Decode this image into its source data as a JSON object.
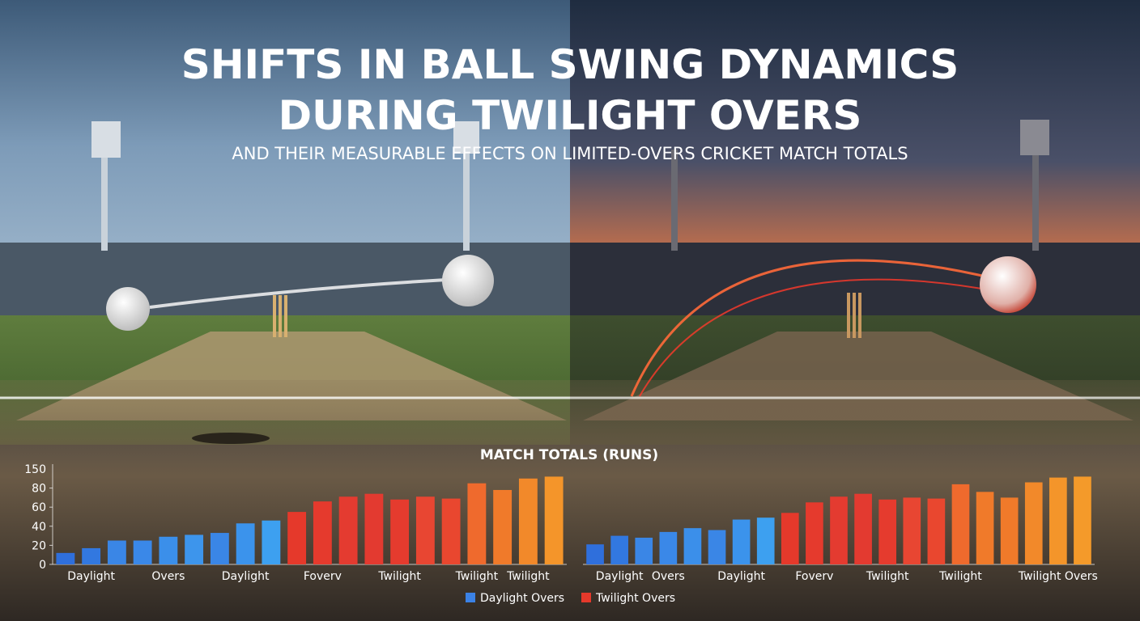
{
  "title_lines": [
    "SHIFTS IN BALL SWING DYNAMICS",
    "DURING TWILIGHT OVERS"
  ],
  "subtitle": "AND THEIR MEASURABLE EFFECTS ON LIMITED-OVERS CRICKET MATCH TOTALS",
  "chart_title": "MATCH TOTALS (RUNS)",
  "legend": [
    {
      "name": "Daylight Overs",
      "color": "#3b82e6"
    },
    {
      "name": "Twilight Overs",
      "color": "#e5392b"
    }
  ],
  "chart_data": [
    {
      "type": "bar",
      "categories": [
        null,
        "Daylight",
        null,
        null,
        "Overs",
        null,
        null,
        "Daylight",
        null,
        null,
        "Foverv",
        null,
        null,
        "Twilight",
        null,
        null,
        "Twilight",
        null,
        "Twilight",
        null
      ],
      "values": [
        12,
        17,
        25,
        25,
        29,
        31,
        33,
        43,
        46,
        55,
        66,
        71,
        74,
        68,
        71,
        69,
        85,
        78,
        90,
        92
      ],
      "colors": [
        "#2f6fdc",
        "#3278e0",
        "#3a86e6",
        "#3a88e8",
        "#3b8fea",
        "#3d95ec",
        "#3a86e6",
        "#3b93ec",
        "#3da0f0",
        "#e5392b",
        "#e53a2d",
        "#e43b30",
        "#e33a30",
        "#e53b2e",
        "#e84632",
        "#e9472f",
        "#ef6a2d",
        "#f07a2a",
        "#f2892a",
        "#f4952a"
      ],
      "ylim": [
        0,
        100
      ],
      "yticks": [
        0,
        20,
        40,
        60,
        80
      ],
      "ytop_label": "150"
    },
    {
      "type": "bar",
      "categories": [
        null,
        "Daylight",
        null,
        "Overs",
        null,
        null,
        "Daylight",
        null,
        null,
        "Foverv",
        null,
        null,
        "Twilight",
        null,
        null,
        "Twilight",
        null,
        null,
        null,
        "Twilight Overs",
        null
      ],
      "values": [
        21,
        30,
        28,
        34,
        38,
        36,
        47,
        49,
        54,
        65,
        71,
        74,
        68,
        70,
        69,
        84,
        76,
        70,
        86,
        91,
        92
      ],
      "colors": [
        "#2f6fdc",
        "#3278e0",
        "#3a86e6",
        "#3a88e8",
        "#3b8fea",
        "#3a86e6",
        "#3b93ec",
        "#3da0f0",
        "#e5392b",
        "#e53a2d",
        "#e43b30",
        "#e33a30",
        "#e53b2e",
        "#e84632",
        "#e9472f",
        "#ef6a2d",
        "#f07a2a",
        "#f07a2a",
        "#f2892a",
        "#f4952a",
        "#f49a2a"
      ],
      "ylim": [
        0,
        100
      ]
    }
  ]
}
